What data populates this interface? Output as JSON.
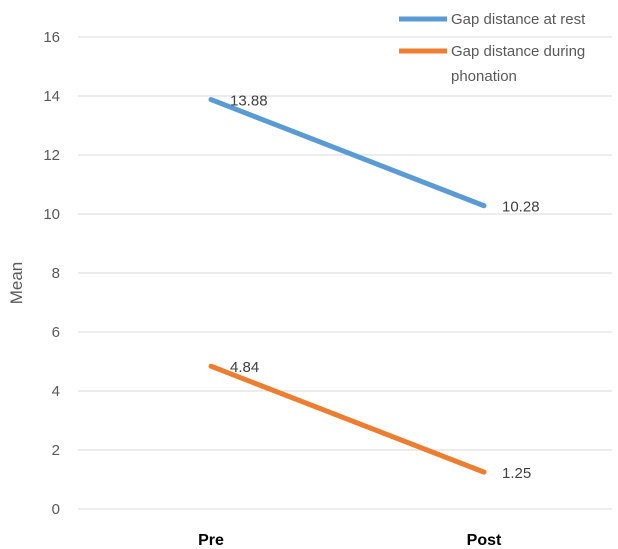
{
  "chart_data": {
    "type": "line",
    "categories": [
      "Pre",
      "Post"
    ],
    "ylabel": "Mean",
    "ylim": [
      0,
      16
    ],
    "yticks": [
      "0",
      "2",
      "4",
      "6",
      "8",
      "10",
      "12",
      "14",
      "16"
    ],
    "grid": true,
    "legend_position": "top-right",
    "series": [
      {
        "name_lines": [
          "Gap distance at rest"
        ],
        "values": [
          13.88,
          10.28
        ],
        "labels": [
          "13.88",
          "10.28"
        ],
        "color": "#5B9BD5"
      },
      {
        "name_lines": [
          "Gap distance during",
          "phonation"
        ],
        "values": [
          4.84,
          1.25
        ],
        "labels": [
          "4.84",
          "1.25"
        ],
        "color": "#ED7D31"
      }
    ]
  }
}
